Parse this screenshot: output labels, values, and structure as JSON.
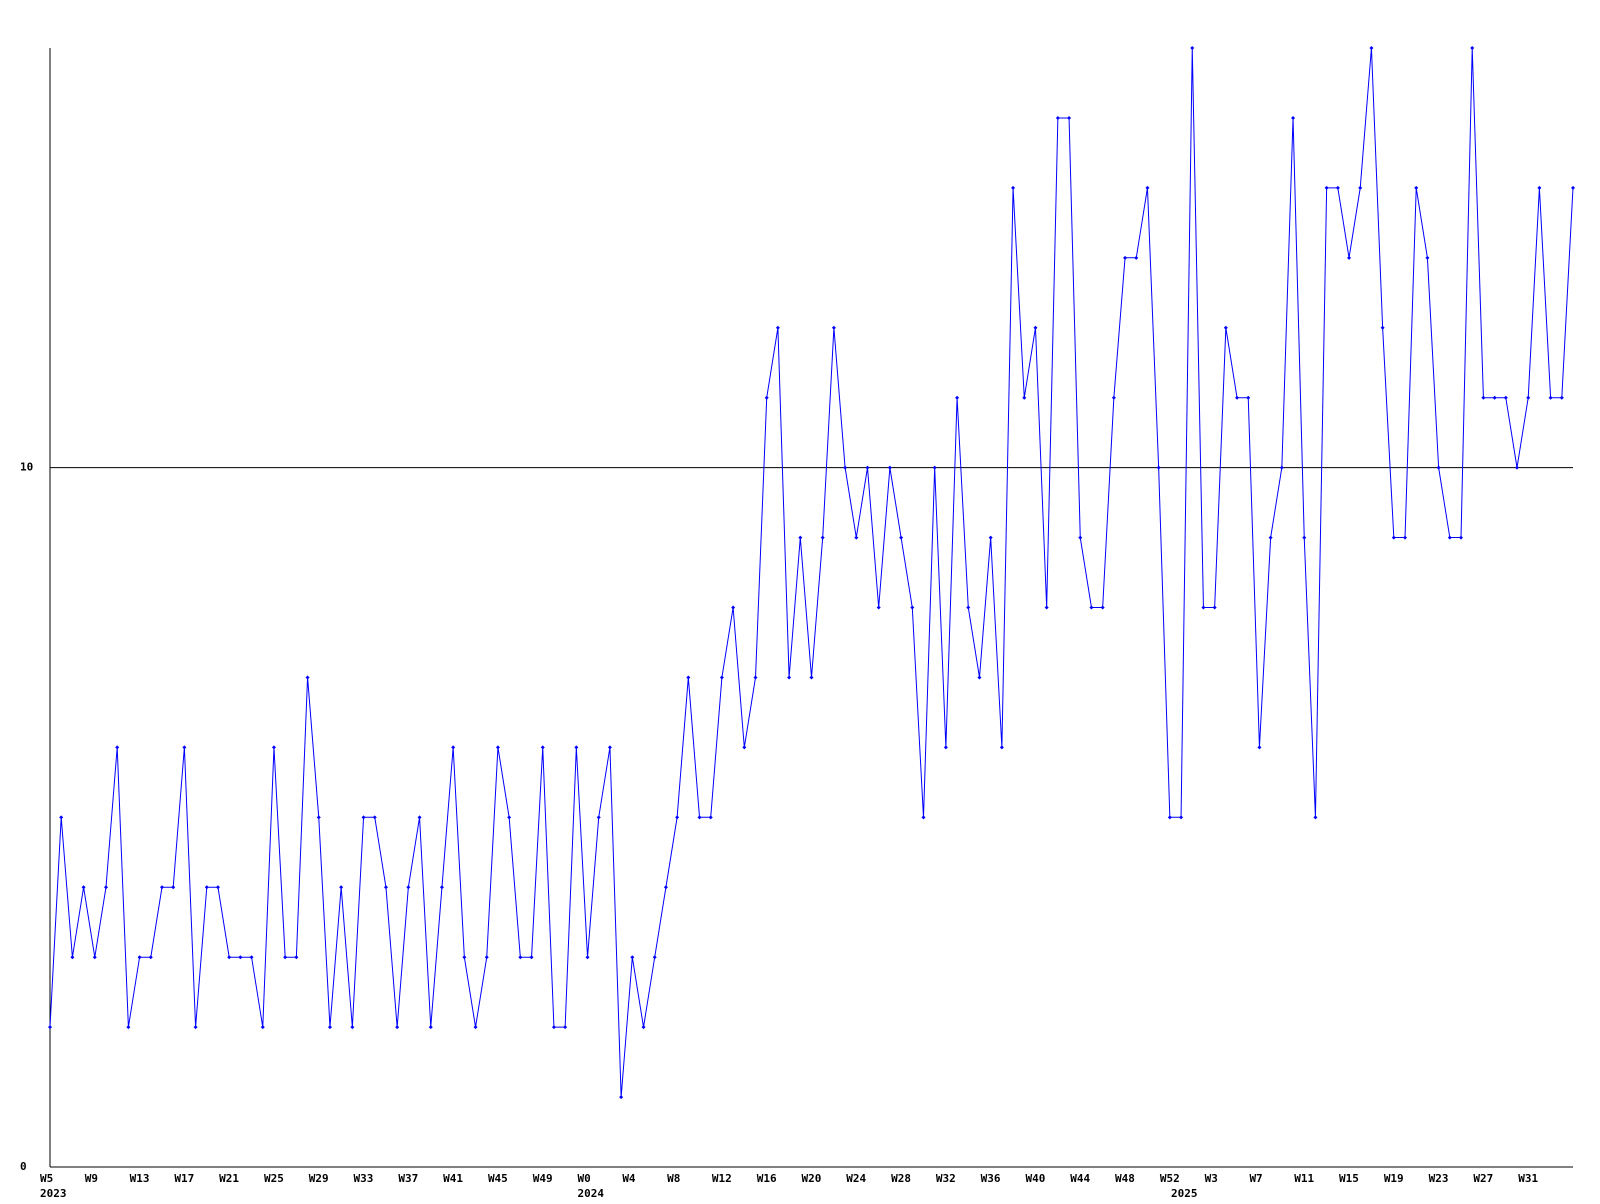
{
  "chart_data": {
    "type": "line",
    "color": "#0000ff",
    "grid_color": "#000000",
    "ylim": [
      0,
      16
    ],
    "yticks": [
      0,
      10
    ],
    "grid": true,
    "categories": [
      "W5",
      null,
      null,
      null,
      "W9",
      null,
      null,
      null,
      "W13",
      null,
      null,
      null,
      "W17",
      null,
      null,
      null,
      "W21",
      null,
      null,
      null,
      "W25",
      null,
      null,
      null,
      "W29",
      null,
      null,
      null,
      "W33",
      null,
      null,
      null,
      "W37",
      null,
      null,
      null,
      "W41",
      null,
      null,
      null,
      "W45",
      null,
      null,
      null,
      "W49",
      null,
      null,
      null,
      "W0",
      null,
      null,
      null,
      "W4",
      null,
      null,
      null,
      "W8",
      null,
      null,
      null,
      "W12",
      null,
      null,
      null,
      "W16",
      null,
      null,
      null,
      "W20",
      null,
      null,
      null,
      "W24",
      null,
      null,
      null,
      "W28",
      null,
      null,
      null,
      "W32",
      null,
      null,
      null,
      "W36",
      null,
      null,
      null,
      "W40",
      null,
      null,
      null,
      "W44",
      null,
      null,
      null,
      "W48",
      null,
      null,
      null,
      "W52",
      null,
      null,
      null,
      "W3",
      null,
      null,
      null,
      "W7",
      null,
      null,
      null,
      "W11",
      null,
      null,
      null,
      "W15",
      null,
      null,
      null,
      "W19",
      null,
      null,
      null,
      "W23",
      null,
      null,
      null,
      "W27",
      null,
      null,
      null,
      "W31",
      null,
      null,
      null,
      null
    ],
    "year_labels": [
      "2023",
      null,
      null,
      null,
      null,
      null,
      null,
      null,
      null,
      null,
      null,
      null,
      null,
      null,
      null,
      null,
      null,
      null,
      null,
      null,
      null,
      null,
      null,
      null,
      null,
      null,
      null,
      null,
      null,
      null,
      null,
      null,
      null,
      null,
      null,
      null,
      null,
      null,
      null,
      null,
      null,
      null,
      null,
      null,
      null,
      null,
      null,
      null,
      "2024",
      null,
      null,
      null,
      null,
      null,
      null,
      null,
      null,
      null,
      null,
      null,
      null,
      null,
      null,
      null,
      null,
      null,
      null,
      null,
      null,
      null,
      null,
      null,
      null,
      null,
      null,
      null,
      null,
      null,
      null,
      null,
      null,
      null,
      null,
      null,
      null,
      null,
      null,
      null,
      null,
      null,
      null,
      null,
      null,
      null,
      null,
      null,
      null,
      null,
      null,
      null,
      null,
      "2025",
      null,
      null,
      null,
      null,
      null,
      null,
      null,
      null,
      null,
      null,
      null,
      null,
      null,
      null,
      null,
      null,
      null,
      null,
      null,
      null,
      null,
      null,
      null,
      null,
      null,
      null,
      null,
      null,
      null,
      null,
      null,
      null,
      null,
      null,
      null
    ],
    "values": [
      2,
      5,
      3,
      4,
      3,
      4,
      6,
      2,
      3,
      3,
      4,
      4,
      6,
      2,
      4,
      4,
      3,
      3,
      3,
      2,
      6,
      3,
      3,
      7,
      5,
      2,
      4,
      2,
      5,
      5,
      4,
      2,
      4,
      5,
      2,
      4,
      6,
      3,
      2,
      3,
      6,
      5,
      3,
      3,
      6,
      2,
      2,
      6,
      3,
      5,
      6,
      1,
      3,
      2,
      3,
      4,
      5,
      7,
      5,
      5,
      7,
      8,
      6,
      7,
      11,
      12,
      7,
      9,
      7,
      9,
      12,
      10,
      9,
      10,
      8,
      10,
      9,
      8,
      5,
      10,
      6,
      11,
      8,
      7,
      9,
      6,
      14,
      11,
      12,
      8,
      15,
      15,
      9,
      8,
      8,
      11,
      13,
      13,
      14,
      10,
      5,
      5,
      16,
      8,
      8,
      12,
      11,
      11,
      6,
      9,
      10,
      15,
      9,
      5,
      14,
      14,
      13,
      14,
      16,
      12,
      9,
      9,
      14,
      13,
      10,
      9,
      9,
      16,
      11,
      11,
      11,
      10,
      11,
      14,
      11,
      11,
      14
    ]
  }
}
